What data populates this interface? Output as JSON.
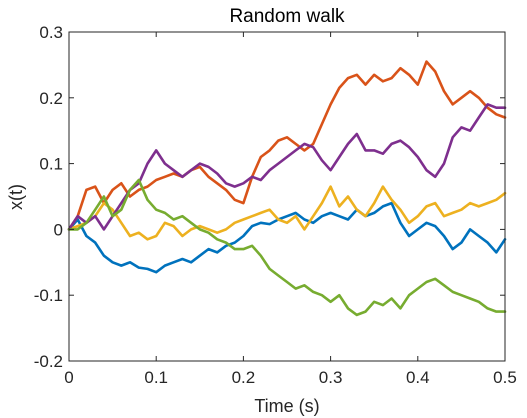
{
  "chart_data": {
    "type": "line",
    "title": "Random walk",
    "xlabel": "Time (s)",
    "ylabel": "x(t)",
    "xlim": [
      0,
      0.5
    ],
    "ylim": [
      -0.2,
      0.3
    ],
    "xticks": [
      0,
      0.1,
      0.2,
      0.3,
      0.4,
      0.5
    ],
    "xtick_labels": [
      "0",
      "0.1",
      "0.2",
      "0.3",
      "0.4",
      "0.5"
    ],
    "yticks": [
      -0.2,
      -0.1,
      0,
      0.1,
      0.2,
      0.3
    ],
    "ytick_labels": [
      "-0.2",
      "-0.1",
      "0",
      "0.1",
      "0.2",
      "0.3"
    ],
    "grid": false,
    "series": [
      {
        "color": "#0072BD",
        "x": [
          0,
          0.01,
          0.02,
          0.03,
          0.04,
          0.05,
          0.06,
          0.07,
          0.08,
          0.09,
          0.1,
          0.11,
          0.12,
          0.13,
          0.14,
          0.15,
          0.16,
          0.17,
          0.18,
          0.19,
          0.2,
          0.21,
          0.22,
          0.23,
          0.24,
          0.25,
          0.26,
          0.27,
          0.28,
          0.29,
          0.3,
          0.31,
          0.32,
          0.33,
          0.34,
          0.35,
          0.36,
          0.37,
          0.38,
          0.39,
          0.4,
          0.41,
          0.42,
          0.43,
          0.44,
          0.45,
          0.46,
          0.47,
          0.48,
          0.49,
          0.5
        ],
        "y": [
          0.0,
          0.015,
          -0.01,
          -0.02,
          -0.04,
          -0.05,
          -0.055,
          -0.05,
          -0.058,
          -0.06,
          -0.065,
          -0.055,
          -0.05,
          -0.045,
          -0.05,
          -0.04,
          -0.03,
          -0.035,
          -0.025,
          -0.02,
          -0.01,
          0.005,
          0.01,
          0.008,
          0.015,
          0.02,
          0.025,
          0.015,
          0.01,
          0.02,
          0.025,
          0.02,
          0.015,
          0.03,
          0.02,
          0.025,
          0.035,
          0.04,
          0.01,
          -0.01,
          0.0,
          0.01,
          0.005,
          -0.01,
          -0.03,
          -0.02,
          0.0,
          -0.01,
          -0.02,
          -0.035,
          -0.015
        ]
      },
      {
        "color": "#D95319",
        "x": [
          0,
          0.01,
          0.02,
          0.03,
          0.04,
          0.05,
          0.06,
          0.07,
          0.08,
          0.09,
          0.1,
          0.11,
          0.12,
          0.13,
          0.14,
          0.15,
          0.16,
          0.17,
          0.18,
          0.19,
          0.2,
          0.21,
          0.22,
          0.23,
          0.24,
          0.25,
          0.26,
          0.27,
          0.28,
          0.29,
          0.3,
          0.31,
          0.32,
          0.33,
          0.34,
          0.35,
          0.36,
          0.37,
          0.38,
          0.39,
          0.4,
          0.41,
          0.42,
          0.43,
          0.44,
          0.45,
          0.46,
          0.47,
          0.48,
          0.49,
          0.5
        ],
        "y": [
          0.0,
          0.02,
          0.06,
          0.065,
          0.04,
          0.06,
          0.07,
          0.05,
          0.06,
          0.065,
          0.075,
          0.08,
          0.085,
          0.08,
          0.09,
          0.095,
          0.08,
          0.07,
          0.06,
          0.045,
          0.04,
          0.08,
          0.11,
          0.12,
          0.135,
          0.14,
          0.13,
          0.12,
          0.13,
          0.16,
          0.19,
          0.215,
          0.23,
          0.235,
          0.22,
          0.235,
          0.225,
          0.23,
          0.245,
          0.235,
          0.22,
          0.255,
          0.24,
          0.21,
          0.19,
          0.2,
          0.21,
          0.2,
          0.185,
          0.175,
          0.17
        ]
      },
      {
        "color": "#EDB120",
        "x": [
          0,
          0.01,
          0.02,
          0.03,
          0.04,
          0.05,
          0.06,
          0.07,
          0.08,
          0.09,
          0.1,
          0.11,
          0.12,
          0.13,
          0.14,
          0.15,
          0.16,
          0.17,
          0.18,
          0.19,
          0.2,
          0.21,
          0.22,
          0.23,
          0.24,
          0.25,
          0.26,
          0.27,
          0.28,
          0.29,
          0.3,
          0.31,
          0.32,
          0.33,
          0.34,
          0.35,
          0.36,
          0.37,
          0.38,
          0.39,
          0.4,
          0.41,
          0.42,
          0.43,
          0.44,
          0.45,
          0.46,
          0.47,
          0.48,
          0.49,
          0.5
        ],
        "y": [
          0.0,
          0.005,
          0.01,
          0.02,
          0.04,
          0.03,
          0.01,
          -0.01,
          -0.005,
          -0.015,
          -0.01,
          0.01,
          0.005,
          -0.01,
          0.0,
          0.005,
          0.0,
          -0.005,
          0.0,
          0.01,
          0.015,
          0.02,
          0.025,
          0.03,
          0.015,
          0.01,
          0.02,
          0.0,
          0.02,
          0.04,
          0.065,
          0.035,
          0.05,
          0.03,
          0.02,
          0.04,
          0.065,
          0.045,
          0.03,
          0.01,
          0.02,
          0.035,
          0.04,
          0.02,
          0.025,
          0.03,
          0.04,
          0.035,
          0.04,
          0.045,
          0.055
        ]
      },
      {
        "color": "#7E2F8E",
        "x": [
          0,
          0.01,
          0.02,
          0.03,
          0.04,
          0.05,
          0.06,
          0.07,
          0.08,
          0.09,
          0.1,
          0.11,
          0.12,
          0.13,
          0.14,
          0.15,
          0.16,
          0.17,
          0.18,
          0.19,
          0.2,
          0.21,
          0.22,
          0.23,
          0.24,
          0.25,
          0.26,
          0.27,
          0.28,
          0.29,
          0.3,
          0.31,
          0.32,
          0.33,
          0.34,
          0.35,
          0.36,
          0.37,
          0.38,
          0.39,
          0.4,
          0.41,
          0.42,
          0.43,
          0.44,
          0.45,
          0.46,
          0.47,
          0.48,
          0.49,
          0.5
        ],
        "y": [
          0.0,
          0.02,
          0.01,
          0.02,
          0.0,
          0.02,
          0.04,
          0.06,
          0.07,
          0.1,
          0.12,
          0.1,
          0.09,
          0.08,
          0.09,
          0.1,
          0.095,
          0.085,
          0.07,
          0.065,
          0.07,
          0.08,
          0.075,
          0.09,
          0.1,
          0.11,
          0.12,
          0.13,
          0.125,
          0.105,
          0.09,
          0.11,
          0.13,
          0.145,
          0.12,
          0.12,
          0.115,
          0.13,
          0.135,
          0.125,
          0.11,
          0.09,
          0.08,
          0.1,
          0.14,
          0.155,
          0.15,
          0.17,
          0.19,
          0.185,
          0.185
        ]
      },
      {
        "color": "#77AC30",
        "x": [
          0,
          0.01,
          0.02,
          0.03,
          0.04,
          0.05,
          0.06,
          0.07,
          0.08,
          0.09,
          0.1,
          0.11,
          0.12,
          0.13,
          0.14,
          0.15,
          0.16,
          0.17,
          0.18,
          0.19,
          0.2,
          0.21,
          0.22,
          0.23,
          0.24,
          0.25,
          0.26,
          0.27,
          0.28,
          0.29,
          0.3,
          0.31,
          0.32,
          0.33,
          0.34,
          0.35,
          0.36,
          0.37,
          0.38,
          0.39,
          0.4,
          0.41,
          0.42,
          0.43,
          0.44,
          0.45,
          0.46,
          0.47,
          0.48,
          0.49,
          0.5
        ],
        "y": [
          0.0,
          0.0,
          0.01,
          0.03,
          0.05,
          0.02,
          0.03,
          0.06,
          0.075,
          0.045,
          0.03,
          0.025,
          0.015,
          0.02,
          0.01,
          0.0,
          -0.005,
          -0.015,
          -0.02,
          -0.03,
          -0.03,
          -0.025,
          -0.04,
          -0.06,
          -0.07,
          -0.08,
          -0.09,
          -0.085,
          -0.095,
          -0.1,
          -0.11,
          -0.1,
          -0.12,
          -0.13,
          -0.125,
          -0.11,
          -0.115,
          -0.105,
          -0.12,
          -0.1,
          -0.09,
          -0.08,
          -0.075,
          -0.085,
          -0.095,
          -0.1,
          -0.105,
          -0.11,
          -0.12,
          -0.125,
          -0.125
        ]
      }
    ]
  }
}
